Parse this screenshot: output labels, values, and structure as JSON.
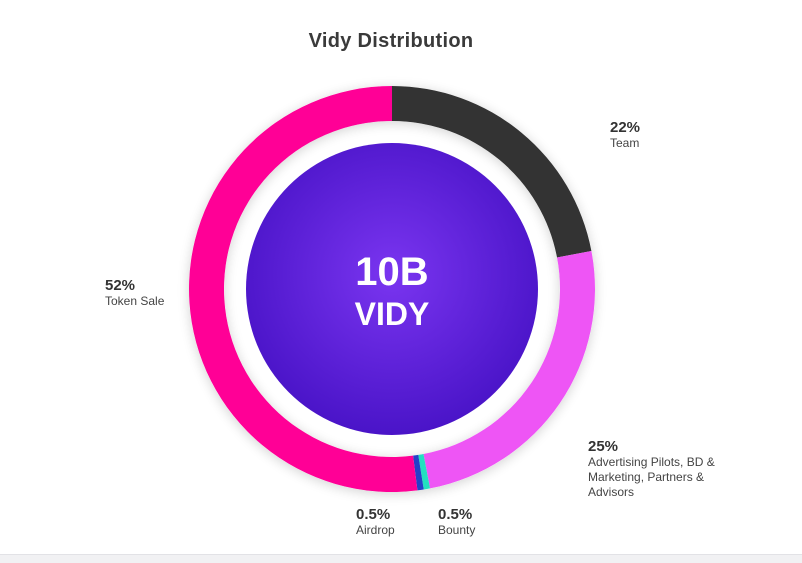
{
  "chart_data": {
    "type": "pie",
    "title": "Vidy Distribution",
    "center_label": {
      "line1": "10B",
      "line2": "VIDY"
    },
    "slices": [
      {
        "label": "Team",
        "percent_text": "22%",
        "value": 22,
        "color": "#333333"
      },
      {
        "label": "Advertising Pilots, BD & Marketing, Partners & Advisors",
        "percent_text": "25%",
        "value": 25,
        "color": "#ee55f5"
      },
      {
        "label": "Bounty",
        "percent_text": "0.5%",
        "value": 0.5,
        "color": "#22e0c0"
      },
      {
        "label": "Airdrop",
        "percent_text": "0.5%",
        "value": 0.5,
        "color": "#2540c8"
      },
      {
        "label": "Token Sale",
        "percent_text": "52%",
        "value": 52,
        "color": "#ff0096"
      }
    ],
    "center_colors": {
      "inner": "#7a35f0",
      "outer": "#4a14c8"
    }
  }
}
